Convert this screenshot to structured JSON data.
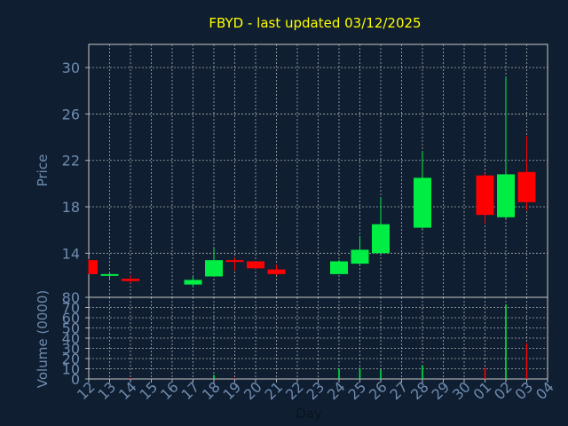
{
  "chart_data": {
    "type": "candlestick",
    "title": "FBYD - last updated 03/12/2025",
    "xlabel": "Day",
    "price_panel": {
      "ylabel": "Price",
      "yticks": [
        30,
        26,
        22,
        18,
        14
      ],
      "ylim": [
        10.2,
        32.0
      ],
      "grid": true
    },
    "volume_panel": {
      "ylabel": "Volume (0000)",
      "yticks": [
        80,
        70,
        60,
        50,
        40,
        30,
        20,
        10,
        0
      ],
      "ylim": [
        0,
        80
      ],
      "grid": true
    },
    "x_tick_labels": [
      "12",
      "13",
      "14",
      "15",
      "16",
      "17",
      "18",
      "19",
      "20",
      "21",
      "22",
      "23",
      "24",
      "25",
      "26",
      "27",
      "28",
      "29",
      "30",
      "01",
      "02",
      "03",
      "04"
    ],
    "colors": {
      "up": "#00ee44",
      "down": "#ff0000",
      "title": "#ffff00",
      "axis_text": "#6f8cb0",
      "grid": "#c8c8c8"
    },
    "candles": [
      {
        "day": "12",
        "open": 13.4,
        "high": 13.5,
        "low": 12.2,
        "close": 12.2
      },
      {
        "day": "13",
        "open": 12.1,
        "high": 12.3,
        "low": 11.8,
        "close": 12.2
      },
      {
        "day": "14",
        "open": 11.8,
        "high": 12.1,
        "low": 11.4,
        "close": 11.6
      },
      {
        "day": "17",
        "open": 11.3,
        "high": 12.0,
        "low": 11.1,
        "close": 11.7
      },
      {
        "day": "18",
        "open": 12.0,
        "high": 14.4,
        "low": 12.0,
        "close": 13.4
      },
      {
        "day": "19",
        "open": 13.4,
        "high": 13.6,
        "low": 12.5,
        "close": 13.3
      },
      {
        "day": "20",
        "open": 13.3,
        "high": 13.3,
        "low": 12.6,
        "close": 12.7
      },
      {
        "day": "21",
        "open": 12.6,
        "high": 13.0,
        "low": 12.1,
        "close": 12.2
      },
      {
        "day": "24",
        "open": 12.2,
        "high": 13.4,
        "low": 12.2,
        "close": 13.3
      },
      {
        "day": "25",
        "open": 13.1,
        "high": 15.5,
        "low": 13.0,
        "close": 14.3
      },
      {
        "day": "26",
        "open": 14.0,
        "high": 18.8,
        "low": 14.0,
        "close": 16.5
      },
      {
        "day": "28",
        "open": 16.2,
        "high": 22.8,
        "low": 16.1,
        "close": 20.5
      },
      {
        "day": "01",
        "open": 20.7,
        "high": 20.9,
        "low": 16.5,
        "close": 17.3
      },
      {
        "day": "02",
        "open": 17.1,
        "high": 29.2,
        "low": 17.0,
        "close": 20.8
      },
      {
        "day": "03",
        "open": 21.0,
        "high": 24.1,
        "low": 17.7,
        "close": 18.4
      }
    ],
    "volumes": [
      {
        "day": "12",
        "value": 0
      },
      {
        "day": "13",
        "value": 0
      },
      {
        "day": "14",
        "value": 1,
        "dir": "down"
      },
      {
        "day": "17",
        "value": 0
      },
      {
        "day": "18",
        "value": 4,
        "dir": "up"
      },
      {
        "day": "19",
        "value": 1,
        "dir": "down"
      },
      {
        "day": "20",
        "value": 0
      },
      {
        "day": "21",
        "value": 0
      },
      {
        "day": "24",
        "value": 10,
        "dir": "up"
      },
      {
        "day": "25",
        "value": 11,
        "dir": "up"
      },
      {
        "day": "26",
        "value": 9,
        "dir": "up"
      },
      {
        "day": "28",
        "value": 13,
        "dir": "up"
      },
      {
        "day": "01",
        "value": 11,
        "dir": "down"
      },
      {
        "day": "02",
        "value": 73,
        "dir": "up"
      },
      {
        "day": "03",
        "value": 35,
        "dir": "down"
      }
    ]
  }
}
